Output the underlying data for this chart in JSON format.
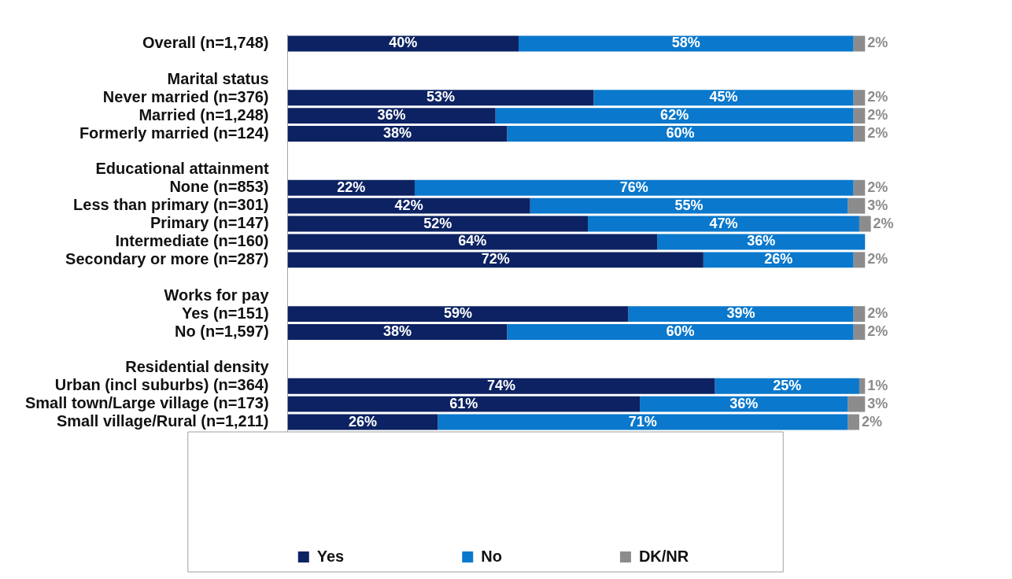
{
  "chart_data": {
    "type": "bar",
    "orientation": "horizontal",
    "stacked": true,
    "legend": "bottom",
    "grid": false,
    "categories": [
      "Overall (n=1,748)",
      null,
      "Marital status",
      "Never married (n=376)",
      "Married (n=1,248)",
      "Formerly married (n=124)",
      null,
      "Educational attainment",
      "None (n=853)",
      "Less than primary (n=301)",
      "Primary (n=147)",
      "Intermediate (n=160)",
      "Secondary or more (n=287)",
      null,
      "Works for pay",
      "Yes (n=151)",
      "No (n=1,597)",
      null,
      "Residential density",
      "Urban (incl suburbs) (n=364)",
      "Small town/Large village (n=173)",
      "Small village/Rural (n=1,211)"
    ],
    "series": [
      {
        "name": "Yes",
        "color": "#0c2262",
        "values": [
          40,
          null,
          null,
          53,
          36,
          38,
          null,
          null,
          22,
          42,
          52,
          64,
          72,
          null,
          null,
          59,
          38,
          null,
          null,
          74,
          61,
          26
        ],
        "value_labels": [
          "40%",
          null,
          null,
          "53%",
          "36%",
          "38%",
          null,
          null,
          "22%",
          "42%",
          "52%",
          "64%",
          "72%",
          null,
          null,
          "59%",
          "38%",
          null,
          null,
          "74%",
          "61%",
          "26%"
        ]
      },
      {
        "name": "No",
        "color": "#0a78cc",
        "values": [
          58,
          null,
          null,
          45,
          62,
          60,
          null,
          null,
          76,
          55,
          47,
          36,
          26,
          null,
          null,
          39,
          60,
          null,
          null,
          25,
          36,
          71
        ],
        "value_labels": [
          "58%",
          null,
          null,
          "45%",
          "62%",
          "60%",
          null,
          null,
          "76%",
          "55%",
          "47%",
          "36%",
          "26%",
          null,
          null,
          "39%",
          "60%",
          null,
          null,
          "25%",
          "36%",
          "71%"
        ]
      },
      {
        "name": "DK/NR",
        "color": "#8c8c8c",
        "values": [
          2,
          null,
          null,
          2,
          2,
          2,
          null,
          null,
          2,
          3,
          2,
          null,
          2,
          null,
          null,
          2,
          2,
          null,
          null,
          1,
          3,
          2
        ],
        "value_labels": [
          "2%",
          null,
          null,
          "2%",
          "2%",
          "2%",
          null,
          null,
          "2%",
          "3%",
          "2%",
          null,
          "2%",
          null,
          null,
          "2%",
          "2%",
          null,
          null,
          "1%",
          "3%",
          "2%"
        ]
      }
    ]
  }
}
